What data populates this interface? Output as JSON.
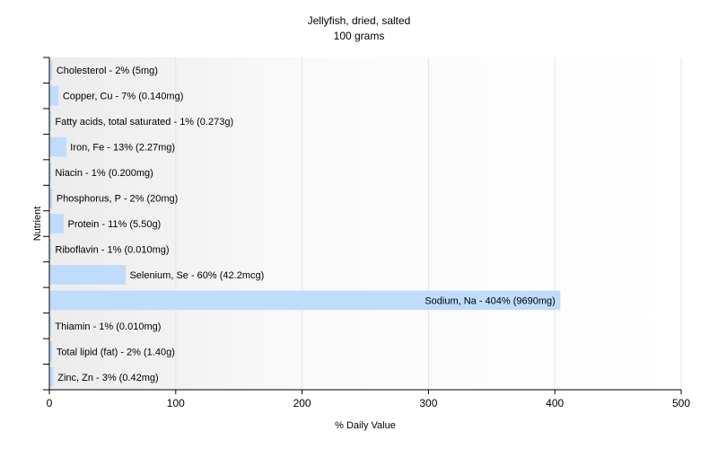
{
  "chart_data": {
    "type": "bar",
    "orientation": "horizontal",
    "title": "Jellyfish, dried, salted",
    "subtitle": "100 grams",
    "xlabel": "% Daily Value",
    "ylabel": "Nutrient",
    "xlim": [
      0,
      500
    ],
    "xticks": [
      "0",
      "100",
      "200",
      "300",
      "400",
      "500"
    ],
    "grid": true,
    "bar_color": "#bfdcfd",
    "categories": [
      "Cholesterol",
      "Copper, Cu",
      "Fatty acids, total saturated",
      "Iron, Fe",
      "Niacin",
      "Phosphorus, P",
      "Protein",
      "Riboflavin",
      "Selenium, Se",
      "Sodium, Na",
      "Thiamin",
      "Total lipid (fat)",
      "Zinc, Zn"
    ],
    "values": [
      2,
      7,
      1,
      13,
      1,
      2,
      11,
      1,
      60,
      404,
      1,
      2,
      3
    ],
    "labels": [
      "Cholesterol - 2% (5mg)",
      "Copper, Cu - 7% (0.140mg)",
      "Fatty acids, total saturated - 1% (0.273g)",
      "Iron, Fe - 13% (2.27mg)",
      "Niacin - 1% (0.200mg)",
      "Phosphorus, P - 2% (20mg)",
      "Protein - 11% (5.50g)",
      "Riboflavin - 1% (0.010mg)",
      "Selenium, Se - 60% (42.2mcg)",
      "Sodium, Na - 404% (9690mg)",
      "Thiamin - 1% (0.010mg)",
      "Total lipid (fat) - 2% (1.40g)",
      "Zinc, Zn - 3% (0.42mg)"
    ]
  }
}
